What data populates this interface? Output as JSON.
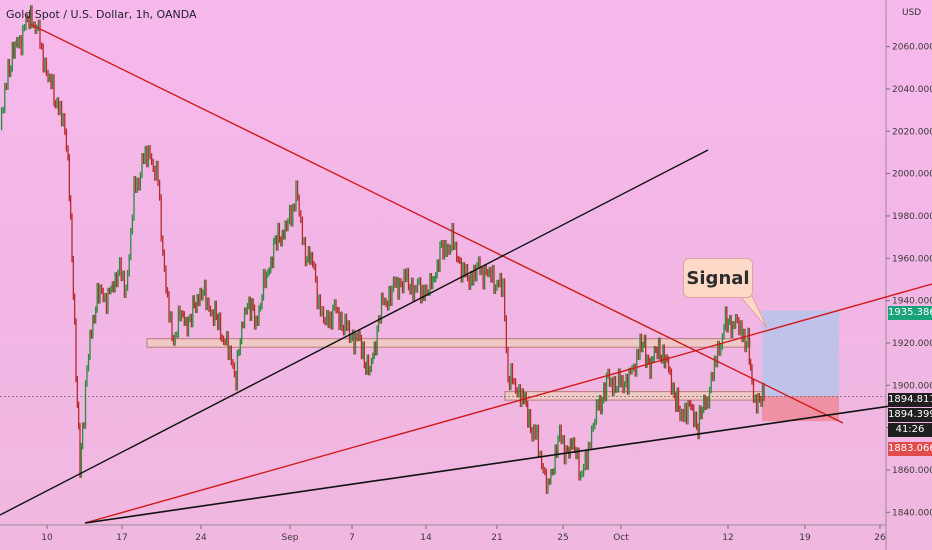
{
  "chart_data": {
    "type": "candlestick",
    "title": "Gold Spot / U.S. Dollar, 1h, OANDA",
    "y_unit": "USD",
    "ylim": [
      1834,
      2082
    ],
    "y_ticks": [
      "2060.000",
      "2040.000",
      "2020.000",
      "2000.000",
      "1980.000",
      "1960.000",
      "1940.000",
      "1920.000",
      "1900.000",
      "1880.000",
      "1860.000",
      "1840.000"
    ],
    "x_ticks": [
      "10",
      "17",
      "24",
      "Sep",
      "7",
      "14",
      "21",
      "25",
      "Oct",
      "12",
      "19",
      "26"
    ],
    "price_path": [
      [
        0,
        2020
      ],
      [
        8,
        2050
      ],
      [
        18,
        2062
      ],
      [
        26,
        2070
      ],
      [
        32,
        2075
      ],
      [
        40,
        2062
      ],
      [
        48,
        2045
      ],
      [
        60,
        2030
      ],
      [
        68,
        2010
      ],
      [
        72,
        1960
      ],
      [
        76,
        1905
      ],
      [
        80,
        1865
      ],
      [
        84,
        1885
      ],
      [
        90,
        1925
      ],
      [
        100,
        1945
      ],
      [
        108,
        1940
      ],
      [
        118,
        1955
      ],
      [
        126,
        1945
      ],
      [
        134,
        1990
      ],
      [
        142,
        2005
      ],
      [
        150,
        2010
      ],
      [
        158,
        1995
      ],
      [
        166,
        1945
      ],
      [
        172,
        1922
      ],
      [
        180,
        1932
      ],
      [
        190,
        1930
      ],
      [
        200,
        1945
      ],
      [
        212,
        1935
      ],
      [
        222,
        1925
      ],
      [
        236,
        1905
      ],
      [
        246,
        1940
      ],
      [
        256,
        1930
      ],
      [
        268,
        1955
      ],
      [
        278,
        1970
      ],
      [
        288,
        1975
      ],
      [
        296,
        1992
      ],
      [
        304,
        1965
      ],
      [
        314,
        1955
      ],
      [
        322,
        1930
      ],
      [
        336,
        1935
      ],
      [
        348,
        1925
      ],
      [
        360,
        1920
      ],
      [
        370,
        1905
      ],
      [
        380,
        1935
      ],
      [
        392,
        1945
      ],
      [
        404,
        1950
      ],
      [
        416,
        1945
      ],
      [
        430,
        1945
      ],
      [
        440,
        1962
      ],
      [
        452,
        1968
      ],
      [
        466,
        1950
      ],
      [
        480,
        1955
      ],
      [
        494,
        1950
      ],
      [
        503,
        1945
      ],
      [
        508,
        1905
      ],
      [
        514,
        1900
      ],
      [
        522,
        1895
      ],
      [
        532,
        1880
      ],
      [
        540,
        1868
      ],
      [
        548,
        1850
      ],
      [
        558,
        1875
      ],
      [
        566,
        1870
      ],
      [
        576,
        1870
      ],
      [
        582,
        1855
      ],
      [
        590,
        1875
      ],
      [
        598,
        1890
      ],
      [
        608,
        1902
      ],
      [
        620,
        1900
      ],
      [
        632,
        1905
      ],
      [
        640,
        1920
      ],
      [
        650,
        1910
      ],
      [
        660,
        1918
      ],
      [
        670,
        1905
      ],
      [
        680,
        1885
      ],
      [
        688,
        1890
      ],
      [
        698,
        1882
      ],
      [
        708,
        1895
      ],
      [
        716,
        1912
      ],
      [
        724,
        1928
      ],
      [
        734,
        1930
      ],
      [
        742,
        1925
      ],
      [
        748,
        1920
      ],
      [
        752,
        1898
      ],
      [
        758,
        1892
      ],
      [
        764,
        1894
      ]
    ],
    "current_price": "1894.811",
    "target_price": "1935.386",
    "stop_price": "1883.066",
    "other_price": "1894.399",
    "countdown": "41:26",
    "annotation": "Signal",
    "resistance_zone": [
      1922,
      1918
    ],
    "support_zone": [
      1897,
      1893
    ],
    "grid": false
  },
  "colors": {
    "red_line": "#d11a1a",
    "black_line": "#111111",
    "target_box": "#b8c4ea",
    "stop_box": "#f08a9a",
    "badge_target": "#1aa27a",
    "badge_price": "#1f1f1f",
    "badge_stop": "#e24b4b"
  }
}
